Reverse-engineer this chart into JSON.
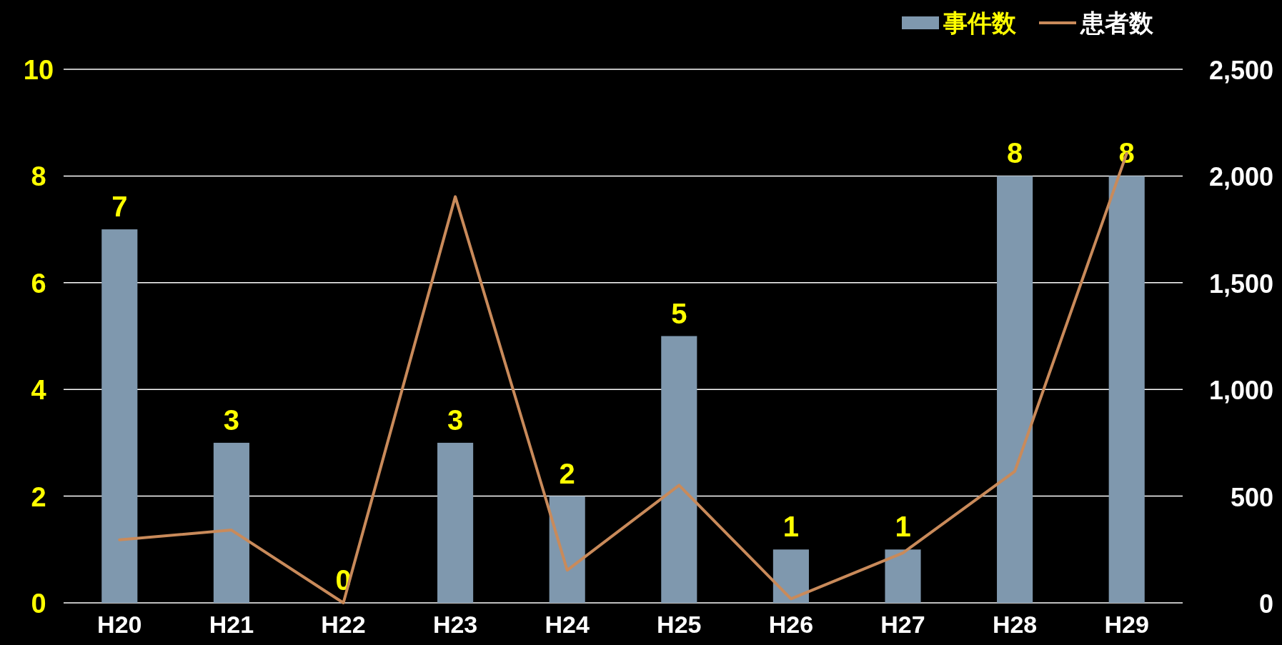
{
  "chart_data": {
    "type": "bar",
    "categories": [
      "H20",
      "H21",
      "H22",
      "H23",
      "H24",
      "H25",
      "H26",
      "H27",
      "H28",
      "H29"
    ],
    "series": [
      {
        "name": "事件数",
        "color": "#7f98ae",
        "values": [
          7,
          3,
          0,
          3,
          2,
          5,
          1,
          1,
          8,
          8
        ],
        "value_labels": [
          "7",
          "3",
          "0",
          "3",
          "2",
          "5",
          "1",
          "1",
          "8",
          "8"
        ]
      },
      {
        "name": "患者数",
        "type": "line",
        "axis": "y2",
        "color": "#c98a5a",
        "values": [
          295,
          341,
          0,
          1903,
          153,
          551,
          19,
          234,
          616,
          2106
        ]
      }
    ],
    "ylim": [
      0,
      10
    ],
    "yticks": [
      0,
      2,
      4,
      6,
      8,
      10
    ],
    "y2lim": [
      0,
      2500
    ],
    "y2ticks": [
      {
        "value": 0,
        "label": "0"
      },
      {
        "value": 500,
        "label": "500"
      },
      {
        "value": 1000,
        "label": "1,000"
      },
      {
        "value": 1500,
        "label": "1,500"
      },
      {
        "value": 2000,
        "label": "2,000"
      },
      {
        "value": 2500,
        "label": "2,500"
      }
    ],
    "grid": "y",
    "legend": "top right"
  }
}
